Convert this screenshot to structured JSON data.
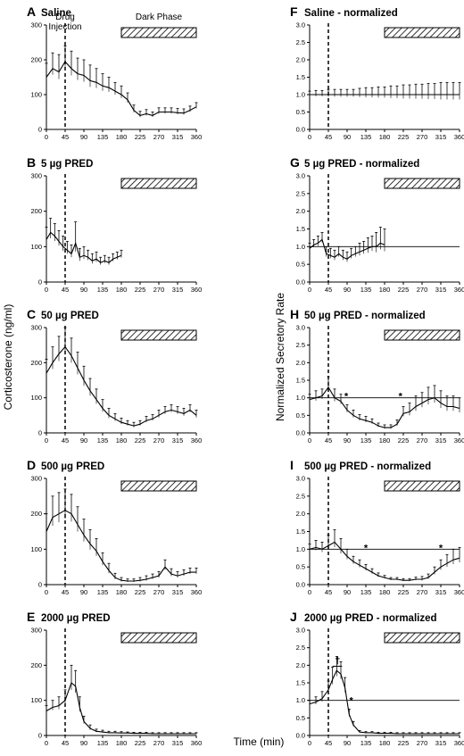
{
  "figure": {
    "left_ylabel": "Corticosterone (ng/ml)",
    "right_ylabel": "Normalized Secretory Rate",
    "xlabel": "Time (min)",
    "dark_phase_label": "Dark Phase",
    "drug_injection_label": "Drug Injection",
    "dark_phase_start": 180,
    "dark_phase_end": 360,
    "injection_time": 45
  },
  "chart_data": [
    {
      "letter": "A",
      "title": "Saline",
      "type": "line",
      "xlim": [
        0,
        360
      ],
      "ylim": [
        0,
        300
      ],
      "xticks": [
        0,
        45,
        90,
        135,
        180,
        225,
        270,
        315,
        360
      ],
      "yticks": [
        0,
        100,
        200,
        300
      ],
      "x": [
        0,
        15,
        30,
        45,
        60,
        75,
        90,
        105,
        120,
        135,
        150,
        165,
        180,
        195,
        210,
        225,
        240,
        255,
        270,
        285,
        300,
        315,
        330,
        345,
        360
      ],
      "y": [
        150,
        175,
        165,
        195,
        175,
        160,
        155,
        140,
        135,
        125,
        120,
        110,
        100,
        85,
        55,
        40,
        45,
        40,
        50,
        50,
        50,
        48,
        47,
        55,
        65
      ],
      "err": [
        40,
        45,
        50,
        45,
        50,
        45,
        45,
        45,
        40,
        35,
        30,
        25,
        25,
        20,
        15,
        12,
        12,
        10,
        12,
        12,
        12,
        12,
        12,
        12,
        12
      ]
    },
    {
      "letter": "B",
      "title": "5 µg PRED",
      "type": "line",
      "xlim": [
        0,
        360
      ],
      "ylim": [
        0,
        300
      ],
      "xticks": [
        0,
        45,
        90,
        135,
        180,
        225,
        270,
        315,
        360
      ],
      "yticks": [
        0,
        100,
        200,
        300
      ],
      "x": [
        0,
        10,
        20,
        30,
        40,
        50,
        60,
        70,
        80,
        90,
        100,
        110,
        120,
        130,
        140,
        150,
        160,
        170,
        180
      ],
      "y": [
        120,
        140,
        130,
        115,
        100,
        90,
        80,
        110,
        70,
        75,
        70,
        60,
        65,
        55,
        60,
        55,
        65,
        70,
        75
      ],
      "err": [
        35,
        40,
        35,
        30,
        30,
        25,
        25,
        60,
        25,
        25,
        20,
        20,
        20,
        15,
        15,
        15,
        15,
        15,
        15
      ]
    },
    {
      "letter": "C",
      "title": "50 µg PRED",
      "type": "line",
      "xlim": [
        0,
        360
      ],
      "ylim": [
        0,
        300
      ],
      "xticks": [
        0,
        45,
        90,
        135,
        180,
        225,
        270,
        315,
        360
      ],
      "yticks": [
        0,
        100,
        200,
        300
      ],
      "x": [
        0,
        15,
        30,
        45,
        60,
        75,
        90,
        105,
        120,
        135,
        150,
        165,
        180,
        195,
        210,
        225,
        240,
        255,
        270,
        285,
        300,
        315,
        330,
        345,
        360
      ],
      "y": [
        170,
        200,
        225,
        245,
        220,
        185,
        150,
        120,
        95,
        70,
        50,
        40,
        30,
        25,
        20,
        25,
        35,
        40,
        50,
        60,
        65,
        60,
        55,
        65,
        50
      ],
      "err": [
        40,
        45,
        50,
        55,
        50,
        45,
        40,
        35,
        30,
        25,
        20,
        15,
        12,
        10,
        10,
        10,
        12,
        12,
        15,
        15,
        15,
        15,
        15,
        15,
        15
      ]
    },
    {
      "letter": "D",
      "title": "500 µg PRED",
      "type": "line",
      "xlim": [
        0,
        360
      ],
      "ylim": [
        0,
        300
      ],
      "xticks": [
        0,
        45,
        90,
        135,
        180,
        225,
        270,
        315,
        360
      ],
      "yticks": [
        0,
        100,
        200,
        300
      ],
      "x": [
        0,
        15,
        30,
        45,
        60,
        75,
        90,
        105,
        120,
        135,
        150,
        165,
        180,
        195,
        210,
        225,
        240,
        255,
        270,
        285,
        300,
        315,
        330,
        345,
        360
      ],
      "y": [
        150,
        190,
        200,
        210,
        200,
        170,
        140,
        115,
        95,
        65,
        40,
        20,
        12,
        10,
        10,
        12,
        15,
        20,
        25,
        50,
        30,
        25,
        30,
        35,
        35
      ],
      "err": [
        50,
        60,
        60,
        60,
        55,
        50,
        45,
        40,
        35,
        25,
        20,
        12,
        8,
        6,
        6,
        8,
        10,
        10,
        12,
        20,
        15,
        12,
        12,
        12,
        12
      ]
    },
    {
      "letter": "E",
      "title": "2000 µg PRED",
      "type": "line",
      "xlim": [
        0,
        360
      ],
      "ylim": [
        0,
        300
      ],
      "xticks": [
        0,
        45,
        90,
        135,
        180,
        225,
        270,
        315,
        360
      ],
      "yticks": [
        0,
        100,
        200,
        300
      ],
      "x": [
        0,
        15,
        30,
        45,
        60,
        70,
        80,
        90,
        105,
        120,
        135,
        150,
        165,
        180,
        195,
        210,
        225,
        240,
        255,
        270,
        285,
        300,
        315,
        330,
        345,
        360
      ],
      "y": [
        70,
        80,
        85,
        100,
        150,
        140,
        80,
        40,
        20,
        12,
        10,
        8,
        8,
        7,
        7,
        6,
        6,
        6,
        5,
        5,
        5,
        5,
        5,
        5,
        5,
        5
      ],
      "err": [
        15,
        20,
        25,
        30,
        50,
        45,
        30,
        15,
        10,
        6,
        5,
        4,
        4,
        4,
        3,
        3,
        3,
        3,
        3,
        3,
        3,
        3,
        3,
        3,
        3,
        3
      ]
    },
    {
      "letter": "F",
      "title": "Saline - normalized",
      "type": "line",
      "xlim": [
        0,
        360
      ],
      "ylim": [
        0,
        3.0
      ],
      "xticks": [
        0,
        45,
        90,
        135,
        180,
        225,
        270,
        315,
        360
      ],
      "yticks": [
        0,
        0.5,
        1.0,
        1.5,
        2.0,
        2.5,
        3.0
      ],
      "x": [
        0,
        15,
        30,
        45,
        60,
        75,
        90,
        105,
        120,
        135,
        150,
        165,
        180,
        195,
        210,
        225,
        240,
        255,
        270,
        285,
        300,
        315,
        330,
        345,
        360
      ],
      "y": [
        1,
        1,
        1,
        1,
        1,
        1,
        1,
        1,
        1,
        1,
        1,
        1,
        1,
        1,
        1,
        1,
        1,
        1,
        1,
        1,
        1,
        1,
        1,
        1,
        1
      ],
      "err": [
        0.1,
        0.12,
        0.12,
        0.15,
        0.15,
        0.15,
        0.15,
        0.15,
        0.18,
        0.2,
        0.2,
        0.22,
        0.22,
        0.25,
        0.25,
        0.28,
        0.28,
        0.3,
        0.3,
        0.32,
        0.32,
        0.35,
        0.35,
        0.35,
        0.35
      ]
    },
    {
      "letter": "G",
      "title": "5 µg PRED - normalized",
      "type": "line",
      "xlim": [
        0,
        360
      ],
      "ylim": [
        0,
        3.0
      ],
      "xticks": [
        0,
        45,
        90,
        135,
        180,
        225,
        270,
        315,
        360
      ],
      "yticks": [
        0,
        0.5,
        1.0,
        1.5,
        2.0,
        2.5,
        3.0
      ],
      "x": [
        0,
        10,
        20,
        30,
        40,
        50,
        60,
        70,
        80,
        90,
        100,
        110,
        120,
        130,
        140,
        150,
        160,
        170,
        180
      ],
      "y": [
        0.95,
        1.05,
        1.1,
        1.2,
        0.8,
        0.75,
        0.7,
        0.8,
        0.7,
        0.65,
        0.75,
        0.8,
        0.85,
        0.9,
        0.95,
        1.0,
        1.0,
        1.1,
        1.05
      ],
      "err": [
        0.15,
        0.15,
        0.2,
        0.2,
        0.2,
        0.2,
        0.2,
        0.2,
        0.2,
        0.2,
        0.2,
        0.2,
        0.25,
        0.25,
        0.3,
        0.3,
        0.4,
        0.45,
        0.45
      ]
    },
    {
      "letter": "H",
      "title": "50 µg PRED - normalized",
      "type": "line",
      "xlim": [
        0,
        360
      ],
      "ylim": [
        0,
        3.0
      ],
      "xticks": [
        0,
        45,
        90,
        135,
        180,
        225,
        270,
        315,
        360
      ],
      "yticks": [
        0,
        0.5,
        1.0,
        1.5,
        2.0,
        2.5,
        3.0
      ],
      "x": [
        0,
        15,
        30,
        45,
        60,
        75,
        90,
        105,
        120,
        135,
        150,
        165,
        180,
        195,
        210,
        225,
        240,
        255,
        270,
        285,
        300,
        315,
        330,
        345,
        360
      ],
      "y": [
        0.95,
        1.0,
        1.05,
        1.3,
        1.0,
        0.9,
        0.65,
        0.5,
        0.4,
        0.35,
        0.3,
        0.2,
        0.15,
        0.15,
        0.25,
        0.55,
        0.6,
        0.75,
        0.85,
        0.95,
        1.0,
        0.85,
        0.75,
        0.75,
        0.7
      ],
      "err": [
        0.15,
        0.2,
        0.2,
        0.3,
        0.25,
        0.2,
        0.15,
        0.15,
        0.12,
        0.12,
        0.1,
        0.08,
        0.08,
        0.08,
        0.12,
        0.2,
        0.25,
        0.3,
        0.3,
        0.35,
        0.35,
        0.35,
        0.3,
        0.3,
        0.3
      ],
      "annotations": [
        {
          "label": "*",
          "x": 88,
          "y": 1.05
        },
        {
          "label": "*",
          "x": 218,
          "y": 1.05
        }
      ]
    },
    {
      "letter": "I",
      "title": "500 µg PRED - normalized",
      "type": "line",
      "xlim": [
        0,
        360
      ],
      "ylim": [
        0,
        3.0
      ],
      "xticks": [
        0,
        45,
        90,
        135,
        180,
        225,
        270,
        315,
        360
      ],
      "yticks": [
        0,
        0.5,
        1.0,
        1.5,
        2.0,
        2.5,
        3.0
      ],
      "x": [
        0,
        15,
        30,
        45,
        60,
        75,
        90,
        105,
        120,
        135,
        150,
        165,
        180,
        195,
        210,
        225,
        240,
        255,
        270,
        285,
        300,
        315,
        330,
        345,
        360
      ],
      "y": [
        1.0,
        1.05,
        1.0,
        1.1,
        1.2,
        1.0,
        0.8,
        0.65,
        0.55,
        0.45,
        0.35,
        0.25,
        0.2,
        0.15,
        0.15,
        0.12,
        0.12,
        0.15,
        0.15,
        0.2,
        0.35,
        0.5,
        0.6,
        0.7,
        0.75
      ],
      "err": [
        0.15,
        0.2,
        0.2,
        0.3,
        0.35,
        0.3,
        0.2,
        0.15,
        0.15,
        0.12,
        0.1,
        0.08,
        0.06,
        0.05,
        0.05,
        0.05,
        0.05,
        0.06,
        0.08,
        0.1,
        0.15,
        0.2,
        0.25,
        0.3,
        0.3
      ],
      "annotations": [
        {
          "label": "*",
          "x": 135,
          "y": 1.05
        },
        {
          "label": "*",
          "x": 315,
          "y": 1.05
        }
      ]
    },
    {
      "letter": "J",
      "title": "2000 µg PRED - normalized",
      "type": "line",
      "xlim": [
        0,
        360
      ],
      "ylim": [
        0,
        3.0
      ],
      "xticks": [
        0,
        45,
        90,
        135,
        180,
        225,
        270,
        315,
        360
      ],
      "yticks": [
        0,
        0.5,
        1.0,
        1.5,
        2.0,
        2.5,
        3.0
      ],
      "x": [
        0,
        15,
        30,
        45,
        55,
        65,
        75,
        85,
        95,
        105,
        120,
        135,
        150,
        165,
        180,
        195,
        210,
        225,
        240,
        255,
        270,
        285,
        300,
        315,
        330,
        345,
        360
      ],
      "y": [
        0.9,
        0.95,
        1.05,
        1.3,
        1.6,
        1.85,
        1.75,
        1.35,
        0.6,
        0.3,
        0.1,
        0.08,
        0.08,
        0.06,
        0.06,
        0.06,
        0.05,
        0.05,
        0.05,
        0.05,
        0.05,
        0.05,
        0.05,
        0.05,
        0.05,
        0.05,
        0.05
      ],
      "err": [
        0.1,
        0.15,
        0.2,
        0.25,
        0.35,
        0.4,
        0.35,
        0.3,
        0.15,
        0.1,
        0.04,
        0.03,
        0.03,
        0.03,
        0.03,
        0.03,
        0.03,
        0.03,
        0.03,
        0.03,
        0.03,
        0.03,
        0.03,
        0.03,
        0.03,
        0.03,
        0.03
      ],
      "annotations": [
        {
          "label": "†",
          "x": 67,
          "y": 2.15,
          "bar": [
            55,
            78
          ]
        },
        {
          "label": "*",
          "x": 100,
          "y": 1.0
        }
      ]
    }
  ]
}
